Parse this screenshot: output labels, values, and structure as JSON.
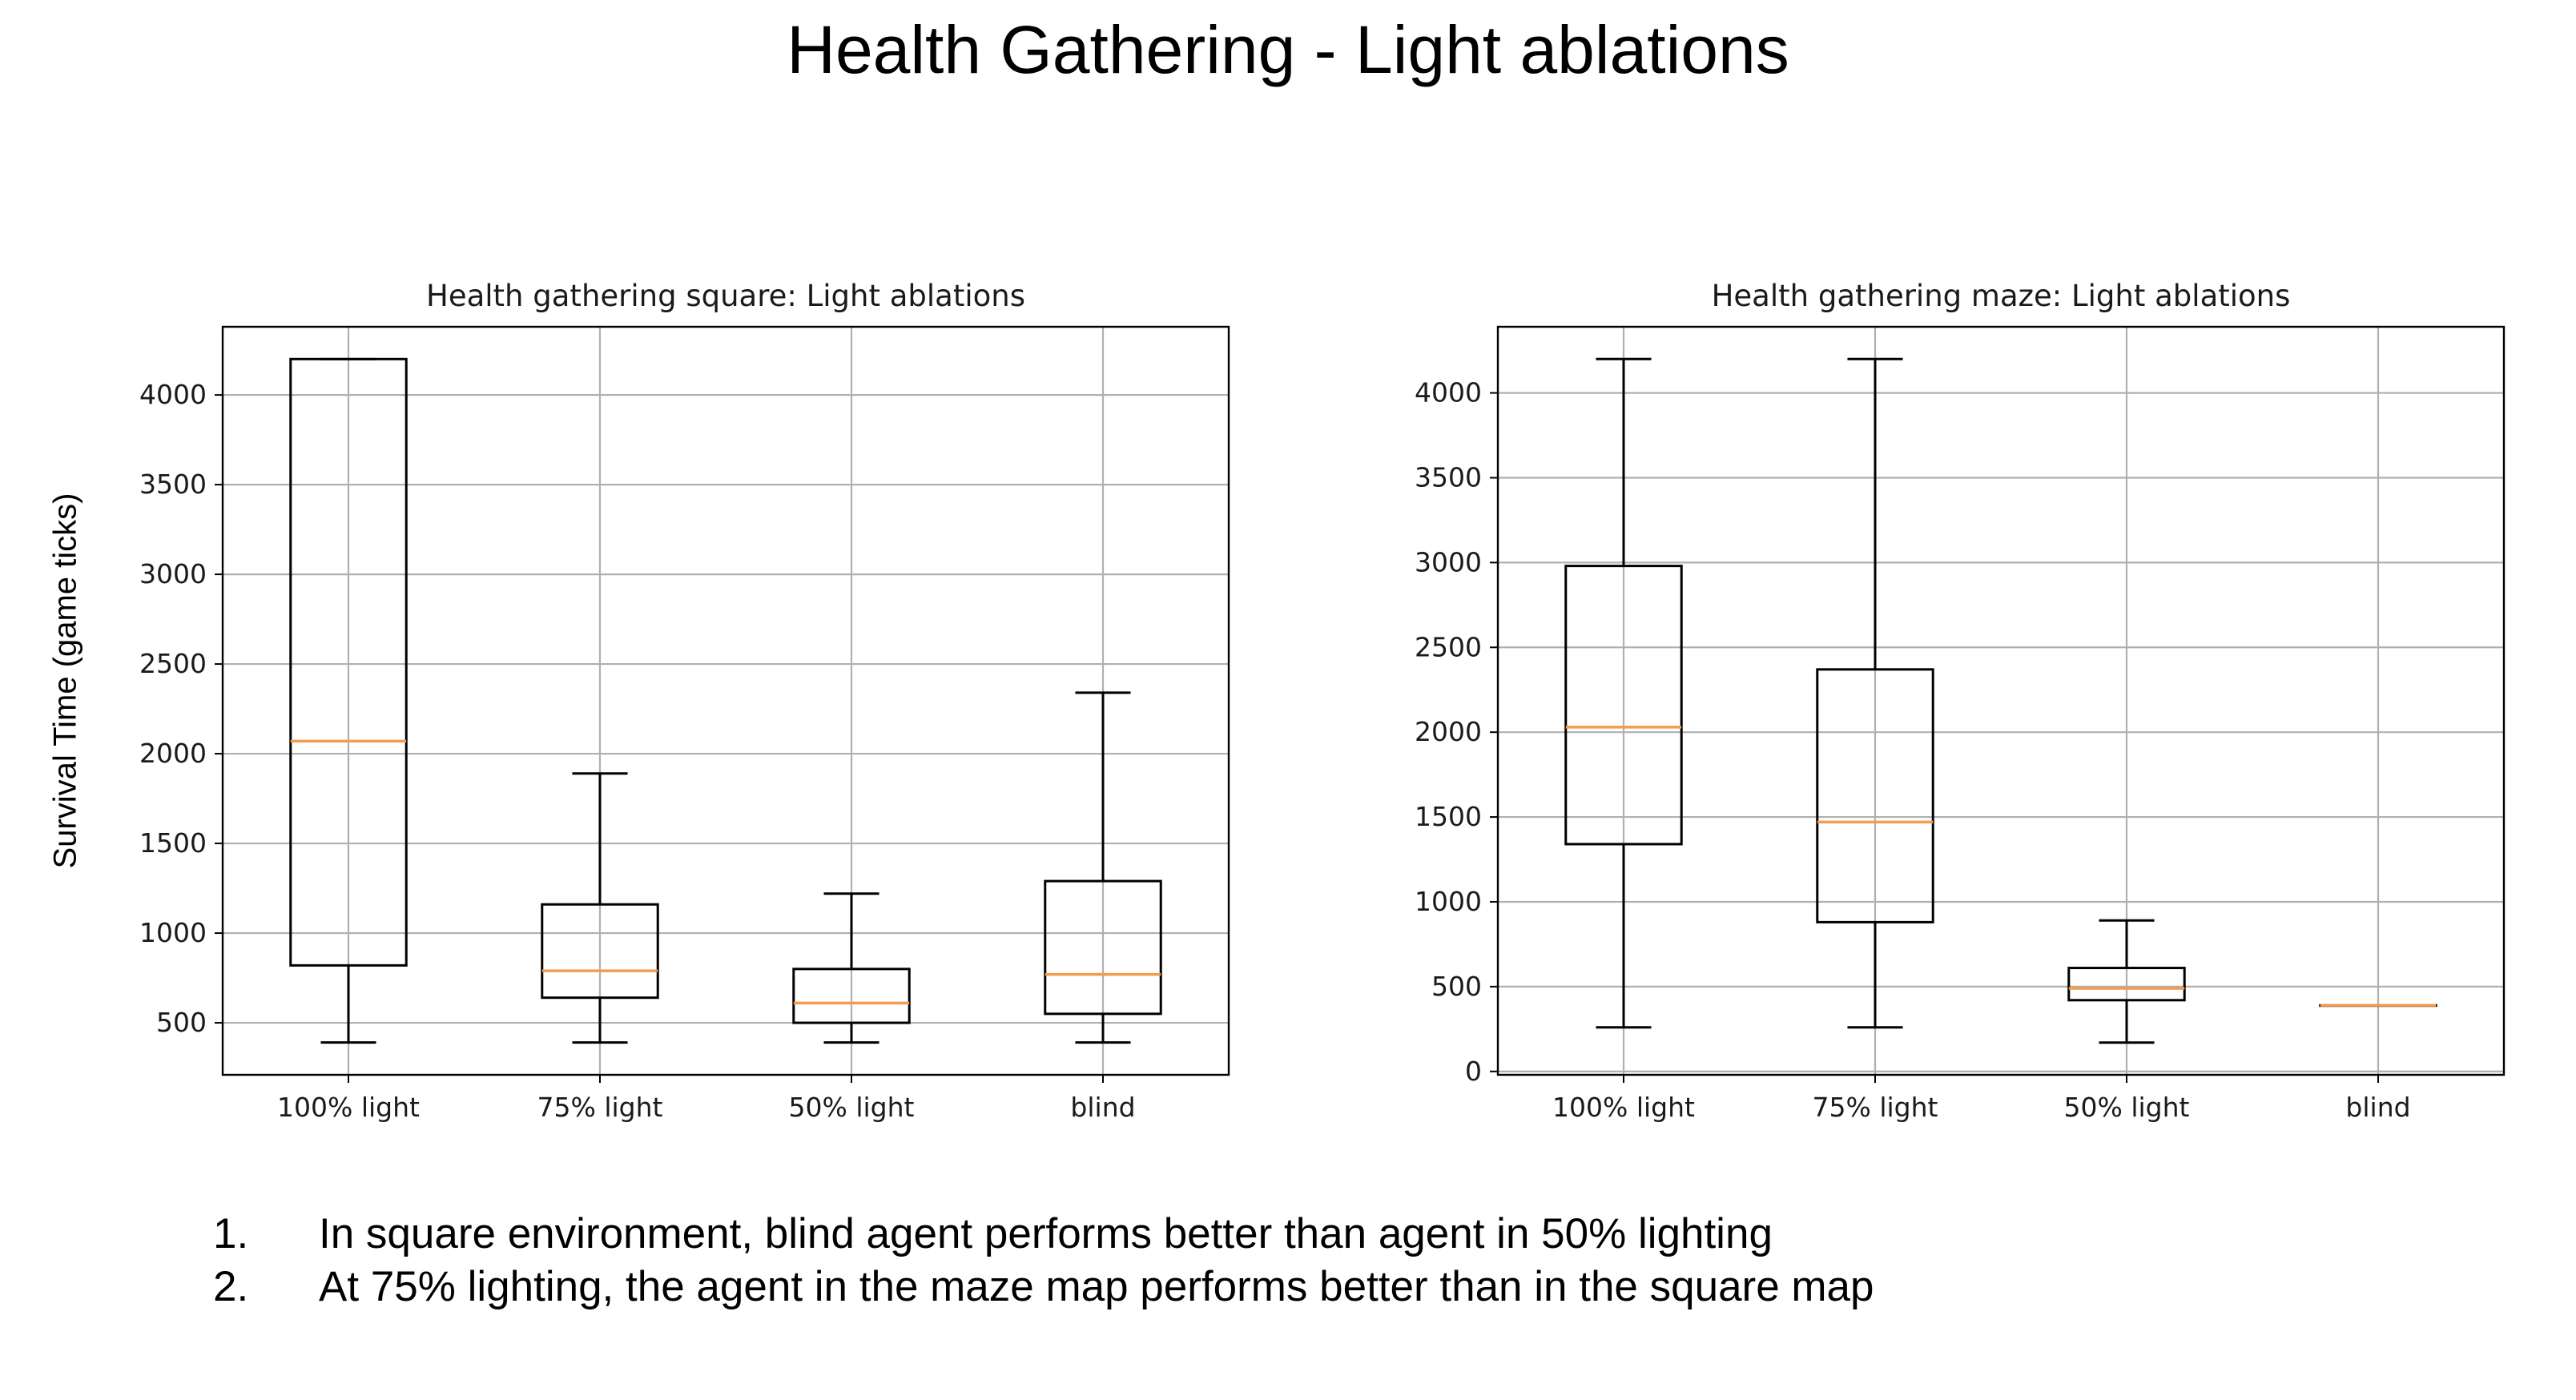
{
  "slide": {
    "title": "Health Gathering - Light ablations",
    "ylabel": "Survival Time (game ticks)",
    "notes": [
      {
        "num": "1.",
        "text": "In square environment, blind agent performs better than agent in 50% lighting"
      },
      {
        "num": "2.",
        "text": "At 75% lighting, the agent in the maze map performs better than in the square map"
      }
    ]
  },
  "colors": {
    "median": "#f39c4e",
    "box": "#000000",
    "grid": "#b0b0b0"
  },
  "chart_data": [
    {
      "type": "box",
      "title": "Health gathering square: Light ablations",
      "xlabel": "",
      "ylabel": "Survival Time (game ticks)",
      "categories": [
        "100% light",
        "75% light",
        "50% light",
        "blind"
      ],
      "boxes": [
        {
          "whislo": 390,
          "q1": 820,
          "med": 2070,
          "q3": 4200,
          "whishi": 4200
        },
        {
          "whislo": 390,
          "q1": 640,
          "med": 790,
          "q3": 1160,
          "whishi": 1890
        },
        {
          "whislo": 390,
          "q1": 500,
          "med": 610,
          "q3": 800,
          "whishi": 1220
        },
        {
          "whislo": 390,
          "q1": 550,
          "med": 770,
          "q3": 1290,
          "whishi": 2340
        }
      ],
      "yticks": [
        500,
        1000,
        1500,
        2000,
        2500,
        3000,
        3500,
        4000
      ],
      "ylim": [
        210,
        4380
      ],
      "grid": true
    },
    {
      "type": "box",
      "title": "Health gathering maze: Light ablations",
      "xlabel": "",
      "ylabel": "",
      "categories": [
        "100% light",
        "75% light",
        "50% light",
        "blind"
      ],
      "boxes": [
        {
          "whislo": 260,
          "q1": 1340,
          "med": 2030,
          "q3": 2980,
          "whishi": 4200
        },
        {
          "whislo": 260,
          "q1": 880,
          "med": 1470,
          "q3": 2370,
          "whishi": 4200
        },
        {
          "whislo": 170,
          "q1": 420,
          "med": 490,
          "q3": 610,
          "whishi": 890
        },
        {
          "whislo": 390,
          "q1": 390,
          "med": 390,
          "q3": 390,
          "whishi": 390
        }
      ],
      "yticks": [
        0,
        500,
        1000,
        1500,
        2000,
        2500,
        3000,
        3500,
        4000
      ],
      "ylim": [
        -20,
        4390
      ],
      "grid": true
    }
  ]
}
